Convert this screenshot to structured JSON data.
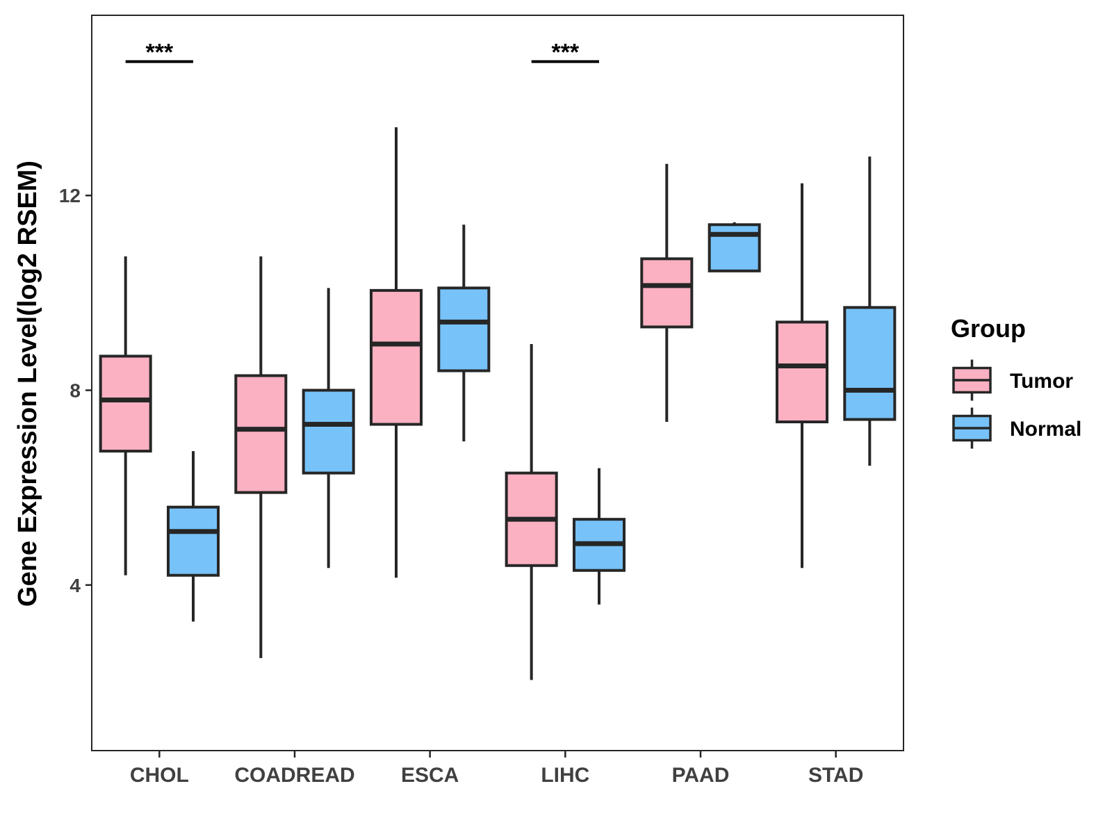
{
  "chart_data": {
    "type": "boxplot",
    "title": "",
    "xlabel": "",
    "ylabel": "Gene Expression Level(log2 RSEM)",
    "ylim": [
      0.6,
      15.7
    ],
    "yticks": [
      4,
      8,
      12
    ],
    "categories": [
      "CHOL",
      "COADREAD",
      "ESCA",
      "LIHC",
      "PAAD",
      "STAD"
    ],
    "legend": {
      "title": "Group",
      "position": "right"
    },
    "series": [
      {
        "name": "Tumor",
        "color": "#FBB1C2",
        "boxes": [
          {
            "category": "CHOL",
            "min": 4.2,
            "q1": 6.75,
            "median": 7.8,
            "q3": 8.7,
            "max": 10.75
          },
          {
            "category": "COADREAD",
            "min": 2.5,
            "q1": 5.9,
            "median": 7.2,
            "q3": 8.3,
            "max": 10.75
          },
          {
            "category": "ESCA",
            "min": 4.15,
            "q1": 7.3,
            "median": 8.95,
            "q3": 10.05,
            "max": 13.4
          },
          {
            "category": "LIHC",
            "min": 2.05,
            "q1": 4.4,
            "median": 5.35,
            "q3": 6.3,
            "max": 8.95
          },
          {
            "category": "PAAD",
            "min": 7.35,
            "q1": 9.3,
            "median": 10.15,
            "q3": 10.7,
            "max": 12.65
          },
          {
            "category": "STAD",
            "min": 4.35,
            "q1": 7.35,
            "median": 8.5,
            "q3": 9.4,
            "max": 12.25
          }
        ]
      },
      {
        "name": "Normal",
        "color": "#77C2F8",
        "boxes": [
          {
            "category": "CHOL",
            "min": 3.25,
            "q1": 4.2,
            "median": 5.1,
            "q3": 5.6,
            "max": 6.75
          },
          {
            "category": "COADREAD",
            "min": 4.35,
            "q1": 6.3,
            "median": 7.3,
            "q3": 8.0,
            "max": 10.1
          },
          {
            "category": "ESCA",
            "min": 6.95,
            "q1": 8.4,
            "median": 9.4,
            "q3": 10.1,
            "max": 11.4
          },
          {
            "category": "LIHC",
            "min": 3.6,
            "q1": 4.3,
            "median": 4.85,
            "q3": 5.35,
            "max": 6.4
          },
          {
            "category": "PAAD",
            "min": 10.45,
            "q1": 10.45,
            "median": 11.2,
            "q3": 11.4,
            "max": 11.45
          },
          {
            "category": "STAD",
            "min": 6.45,
            "q1": 7.4,
            "median": 8.0,
            "q3": 9.7,
            "max": 12.8
          }
        ]
      }
    ],
    "annotations": [
      {
        "category": "CHOL",
        "text": "***",
        "y": 14.75
      },
      {
        "category": "LIHC",
        "text": "***",
        "y": 14.75
      }
    ]
  }
}
